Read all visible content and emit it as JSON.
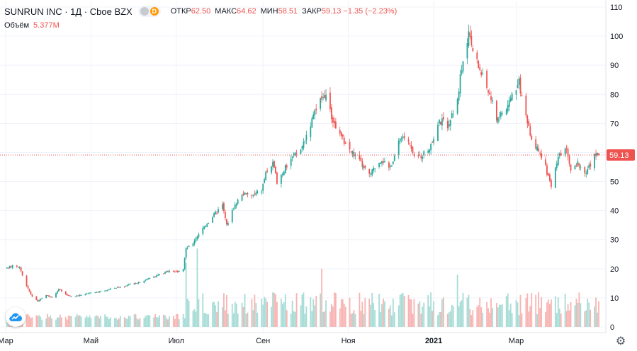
{
  "header": {
    "symbol": "SUNRUN INC · 1Д · Cboe BZX",
    "badge_letter": "D",
    "open_label": "ОТКР",
    "open_value": "62.50",
    "high_label": "МАКС",
    "high_value": "64.62",
    "low_label": "МИН",
    "low_value": "58.51",
    "close_label": "ЗАКР",
    "close_value": "59.13 −1.35 (−2.23%)",
    "volume_label": "Объём",
    "volume_value": "5.377M"
  },
  "colors": {
    "up": "#26a69a",
    "down": "#ef5350",
    "grid": "#f0f3fa",
    "axis_text": "#131722"
  },
  "icons": {
    "logo": "tradingview-cloud-icon",
    "settings": "gear-icon"
  },
  "chart_data": {
    "type": "candlestick",
    "y_axis": {
      "min": 0,
      "max": 110,
      "ticks": [
        0,
        10,
        20,
        30,
        40,
        50,
        60,
        70,
        80,
        90,
        100,
        110
      ],
      "position": "right"
    },
    "x_axis": {
      "labels": [
        {
          "text": "Мар",
          "date": "2020-03-01"
        },
        {
          "text": "Май",
          "date": "2020-05-01"
        },
        {
          "text": "Июл",
          "date": "2020-07-01"
        },
        {
          "text": "Сен",
          "date": "2020-09-01"
        },
        {
          "text": "Ноя",
          "date": "2020-11-01"
        },
        {
          "text": "2021",
          "date": "2021-01-01"
        },
        {
          "text": "Мар",
          "date": "2021-03-01"
        }
      ]
    },
    "last_price": 59.13,
    "last_price_label": "59.13",
    "grid": true,
    "volume_overlay": true,
    "price_anchors": [
      [
        "2020-03-01",
        20.0
      ],
      [
        "2020-03-06",
        21.0
      ],
      [
        "2020-03-11",
        20.5
      ],
      [
        "2020-03-16",
        14.0
      ],
      [
        "2020-03-20",
        10.5
      ],
      [
        "2020-03-24",
        8.8
      ],
      [
        "2020-03-30",
        11.0
      ],
      [
        "2020-04-03",
        10.0
      ],
      [
        "2020-04-08",
        13.0
      ],
      [
        "2020-04-14",
        10.8
      ],
      [
        "2020-04-20",
        10.5
      ],
      [
        "2020-04-27",
        11.5
      ],
      [
        "2020-05-04",
        11.8
      ],
      [
        "2020-05-11",
        12.5
      ],
      [
        "2020-05-18",
        13.5
      ],
      [
        "2020-05-25",
        14.0
      ],
      [
        "2020-06-01",
        15.0
      ],
      [
        "2020-06-08",
        16.0
      ],
      [
        "2020-06-15",
        17.5
      ],
      [
        "2020-06-22",
        18.5
      ],
      [
        "2020-06-26",
        19.5
      ],
      [
        "2020-07-01",
        19.0
      ],
      [
        "2020-07-06",
        20.0
      ],
      [
        "2020-07-08",
        27.0
      ],
      [
        "2020-07-13",
        28.5
      ],
      [
        "2020-07-20",
        34.0
      ],
      [
        "2020-07-27",
        38.0
      ],
      [
        "2020-08-03",
        42.0
      ],
      [
        "2020-08-06",
        35.0
      ],
      [
        "2020-08-11",
        41.0
      ],
      [
        "2020-08-17",
        46.0
      ],
      [
        "2020-08-24",
        45.0
      ],
      [
        "2020-08-31",
        47.0
      ],
      [
        "2020-09-03",
        53.0
      ],
      [
        "2020-09-08",
        56.0
      ],
      [
        "2020-09-11",
        50.0
      ],
      [
        "2020-09-16",
        54.0
      ],
      [
        "2020-09-21",
        58.0
      ],
      [
        "2020-09-28",
        61.0
      ],
      [
        "2020-10-05",
        70.0
      ],
      [
        "2020-10-12",
        78.0
      ],
      [
        "2020-10-16",
        80.0
      ],
      [
        "2020-10-20",
        72.0
      ],
      [
        "2020-10-26",
        66.0
      ],
      [
        "2020-11-02",
        61.0
      ],
      [
        "2020-11-09",
        57.0
      ],
      [
        "2020-11-16",
        52.0
      ],
      [
        "2020-11-20",
        55.0
      ],
      [
        "2020-11-25",
        58.0
      ],
      [
        "2020-11-30",
        54.0
      ],
      [
        "2020-12-04",
        59.0
      ],
      [
        "2020-12-09",
        66.0
      ],
      [
        "2020-12-14",
        64.0
      ],
      [
        "2020-12-18",
        58.0
      ],
      [
        "2020-12-23",
        59.0
      ],
      [
        "2020-12-30",
        62.0
      ],
      [
        "2021-01-04",
        70.0
      ],
      [
        "2021-01-08",
        71.0
      ],
      [
        "2021-01-12",
        69.0
      ],
      [
        "2021-01-18",
        79.0
      ],
      [
        "2021-01-22",
        92.0
      ],
      [
        "2021-01-26",
        100.0
      ],
      [
        "2021-02-01",
        91.0
      ],
      [
        "2021-02-05",
        86.0
      ],
      [
        "2021-02-10",
        80.0
      ],
      [
        "2021-02-15",
        72.0
      ],
      [
        "2021-02-22",
        75.0
      ],
      [
        "2021-02-26",
        80.0
      ],
      [
        "2021-03-03",
        84.0
      ],
      [
        "2021-03-08",
        72.0
      ],
      [
        "2021-03-12",
        65.0
      ],
      [
        "2021-03-17",
        60.0
      ],
      [
        "2021-03-22",
        55.0
      ],
      [
        "2021-03-26",
        48.0
      ],
      [
        "2021-03-31",
        58.0
      ],
      [
        "2021-04-06",
        62.0
      ],
      [
        "2021-04-10",
        52.0
      ],
      [
        "2021-04-14",
        57.0
      ],
      [
        "2021-04-19",
        52.0
      ],
      [
        "2021-04-23",
        56.0
      ],
      [
        "2021-04-28",
        60.5
      ],
      [
        "2021-04-29",
        59.13
      ]
    ],
    "volume_scale_max": 30,
    "volume_spikes": [
      [
        "2020-07-08",
        22
      ],
      [
        "2020-07-16",
        27
      ],
      [
        "2020-10-13",
        20
      ],
      [
        "2021-01-18",
        18
      ]
    ]
  }
}
